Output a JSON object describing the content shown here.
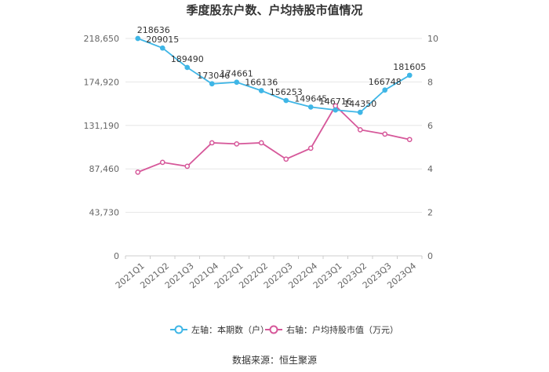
{
  "chart_data": {
    "type": "line",
    "title": "季度股东户数、户均持股市值情况",
    "categories": [
      "2021Q1",
      "2021Q2",
      "2021Q3",
      "2021Q4",
      "2022Q1",
      "2022Q2",
      "2022Q3",
      "2022Q4",
      "2023Q1",
      "2023Q2",
      "2023Q3",
      "2023Q4"
    ],
    "left_axis": {
      "ticks": [
        "0",
        "43,730",
        "87,460",
        "131,190",
        "174,920",
        "218,650"
      ],
      "ylim": [
        0,
        218650
      ]
    },
    "right_axis": {
      "ticks": [
        "0",
        "2",
        "4",
        "6",
        "8",
        "10"
      ],
      "ylim": [
        0,
        10
      ]
    },
    "series": [
      {
        "name": "左轴：本期数（户）",
        "axis": "left",
        "color": "#3fb6e6",
        "values": [
          218636,
          209015,
          189490,
          173046,
          174661,
          166136,
          156253,
          149645,
          146716,
          144350,
          166748,
          181605
        ],
        "labels": [
          "218636",
          "209015",
          "189490",
          "173046",
          "174661",
          "166136",
          "156253",
          "149645",
          "146716",
          "144350",
          "166748",
          "181605"
        ]
      },
      {
        "name": "右轴：户均持股市值（万元）",
        "axis": "right",
        "color": "#d6589a",
        "values": [
          3.85,
          4.3,
          4.12,
          5.2,
          5.15,
          5.2,
          4.45,
          4.95,
          6.9,
          5.8,
          5.6,
          5.35
        ]
      }
    ],
    "grid": true,
    "legend_position": "bottom"
  },
  "source": "数据来源：恒生聚源"
}
